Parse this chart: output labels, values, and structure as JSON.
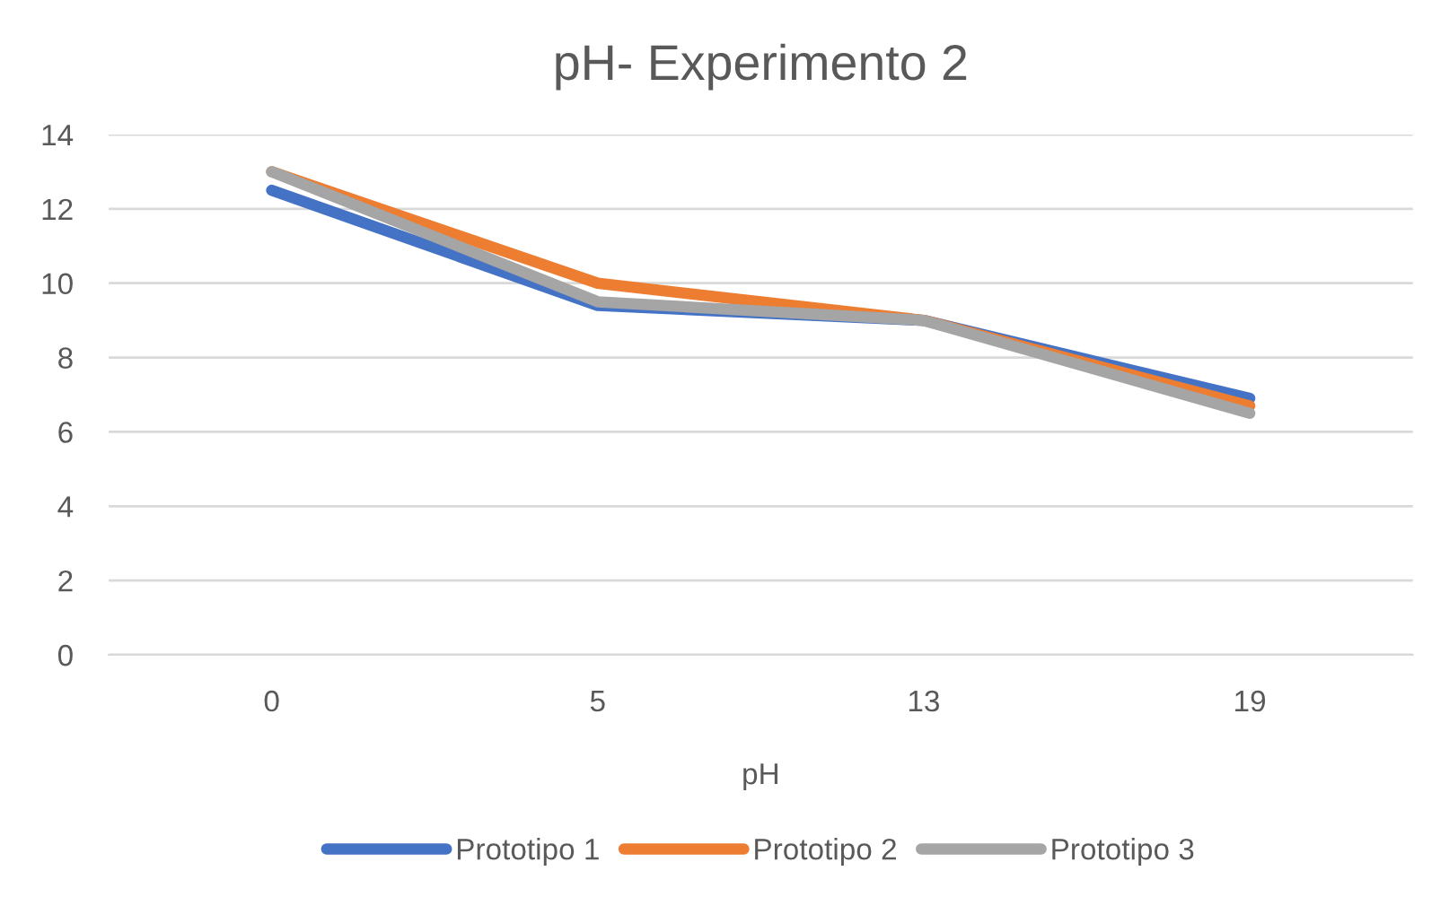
{
  "chart_data": {
    "type": "line",
    "title": "pH- Experimento 2",
    "xlabel": "pH",
    "categories": [
      "0",
      "5",
      "13",
      "19"
    ],
    "series": [
      {
        "name": "Prototipo 1",
        "color": "#4472c4",
        "values": [
          12.5,
          9.4,
          9.0,
          6.9
        ]
      },
      {
        "name": "Prototipo 2",
        "color": "#ed7d31",
        "values": [
          13.0,
          10.0,
          9.0,
          6.7
        ]
      },
      {
        "name": "Prototipo 3",
        "color": "#a5a5a5",
        "values": [
          13.0,
          9.5,
          9.0,
          6.5
        ]
      }
    ],
    "ylim": [
      0,
      14
    ],
    "yticks": [
      0,
      2,
      4,
      6,
      8,
      10,
      12,
      14
    ],
    "grid": "y",
    "legend": "bottom",
    "marker": "none",
    "line_style": "solid"
  }
}
